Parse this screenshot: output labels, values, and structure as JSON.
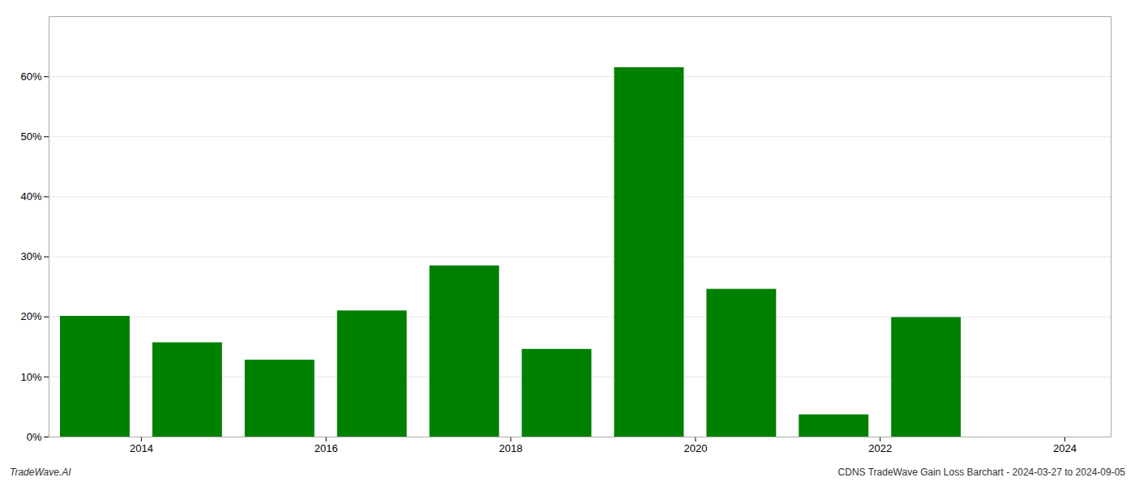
{
  "chart_data": {
    "type": "bar",
    "x": [
      2013.5,
      2014.5,
      2015.5,
      2016.5,
      2017.5,
      2018.5,
      2019.5,
      2020.5,
      2021.5,
      2022.5
    ],
    "values": [
      0.201,
      0.157,
      0.128,
      0.21,
      0.285,
      0.146,
      0.615,
      0.246,
      0.037,
      0.199
    ],
    "color": "#008000",
    "xlim": [
      2013.0,
      2024.5
    ],
    "xticks": [
      2014,
      2016,
      2018,
      2020,
      2022,
      2024
    ],
    "ylim": [
      0,
      0.7
    ],
    "yticks": [
      {
        "value": 0.0,
        "label": "0%"
      },
      {
        "value": 0.1,
        "label": "10%"
      },
      {
        "value": 0.2,
        "label": "20%"
      },
      {
        "value": 0.3,
        "label": "30%"
      },
      {
        "value": 0.4,
        "label": "40%"
      },
      {
        "value": 0.5,
        "label": "50%"
      },
      {
        "value": 0.6,
        "label": "60%"
      }
    ],
    "grid": true,
    "annotations": [
      "TradeWave.AI",
      "CDNS TradeWave Gain Loss Barchart - 2024-03-27 to 2024-09-05"
    ]
  }
}
